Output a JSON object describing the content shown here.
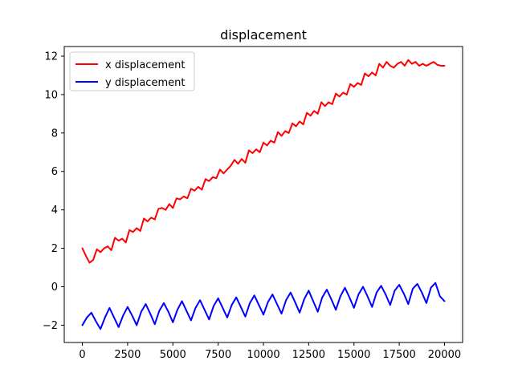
{
  "chart_data": {
    "type": "line",
    "title": "displacement",
    "xlabel": "",
    "ylabel": "",
    "xlim": [
      -1000,
      21000
    ],
    "ylim": [
      -2.9,
      12.5
    ],
    "xticks": [
      0,
      2500,
      5000,
      7500,
      10000,
      12500,
      15000,
      17500,
      20000
    ],
    "xtick_labels": [
      "0",
      "2500",
      "5000",
      "7500",
      "10000",
      "12500",
      "15000",
      "17500",
      "20000"
    ],
    "yticks": [
      -2,
      0,
      2,
      4,
      6,
      8,
      10,
      12
    ],
    "ytick_labels": [
      "−2",
      "0",
      "2",
      "4",
      "6",
      "8",
      "10",
      "12"
    ],
    "grid": false,
    "legend_position": "top-left",
    "series": [
      {
        "name": "x displacement",
        "color": "#ff0000",
        "x": [
          0,
          200,
          400,
          600,
          800,
          1000,
          1200,
          1400,
          1600,
          1800,
          2000,
          2200,
          2400,
          2600,
          2800,
          3000,
          3200,
          3400,
          3600,
          3800,
          4000,
          4200,
          4400,
          4600,
          4800,
          5000,
          5200,
          5400,
          5600,
          5800,
          6000,
          6200,
          6400,
          6600,
          6800,
          7000,
          7200,
          7400,
          7600,
          7800,
          8000,
          8200,
          8400,
          8600,
          8800,
          9000,
          9200,
          9400,
          9600,
          9800,
          10000,
          10200,
          10400,
          10600,
          10800,
          11000,
          11200,
          11400,
          11600,
          11800,
          12000,
          12200,
          12400,
          12600,
          12800,
          13000,
          13200,
          13400,
          13600,
          13800,
          14000,
          14200,
          14400,
          14600,
          14800,
          15000,
          15200,
          15400,
          15600,
          15800,
          16000,
          16200,
          16400,
          16600,
          16800,
          17000,
          17200,
          17400,
          17600,
          17800,
          18000,
          18200,
          18400,
          18600,
          18800,
          19000,
          19200,
          19400,
          19600,
          19800,
          20000
        ],
        "values": [
          2.0,
          1.6,
          1.25,
          1.4,
          1.95,
          1.8,
          2.0,
          2.1,
          1.9,
          2.55,
          2.4,
          2.5,
          2.3,
          2.95,
          2.85,
          3.05,
          2.9,
          3.55,
          3.4,
          3.6,
          3.5,
          4.05,
          4.1,
          4.0,
          4.3,
          4.1,
          4.6,
          4.55,
          4.7,
          4.6,
          5.1,
          5.0,
          5.2,
          5.05,
          5.6,
          5.5,
          5.7,
          5.65,
          6.1,
          5.9,
          6.1,
          6.3,
          6.6,
          6.4,
          6.65,
          6.45,
          7.1,
          6.95,
          7.15,
          7.0,
          7.5,
          7.35,
          7.6,
          7.5,
          8.05,
          7.85,
          8.1,
          8.0,
          8.5,
          8.35,
          8.6,
          8.45,
          9.05,
          8.9,
          9.15,
          9.0,
          9.6,
          9.4,
          9.6,
          9.5,
          10.05,
          9.9,
          10.1,
          10.0,
          10.55,
          10.4,
          10.6,
          10.5,
          11.1,
          10.95,
          11.15,
          11.0,
          11.6,
          11.4,
          11.7,
          11.5,
          11.4,
          11.6,
          11.7,
          11.5,
          11.8,
          11.6,
          11.7,
          11.5,
          11.6,
          11.5,
          11.6,
          11.7,
          11.55,
          11.5,
          11.5
        ]
      },
      {
        "name": "y displacement",
        "color": "#0000ff",
        "x": [
          0,
          250,
          500,
          750,
          1000,
          1250,
          1500,
          1750,
          2000,
          2250,
          2500,
          2750,
          3000,
          3250,
          3500,
          3750,
          4000,
          4250,
          4500,
          4750,
          5000,
          5250,
          5500,
          5750,
          6000,
          6250,
          6500,
          6750,
          7000,
          7250,
          7500,
          7750,
          8000,
          8250,
          8500,
          8750,
          9000,
          9250,
          9500,
          9750,
          10000,
          10250,
          10500,
          10750,
          11000,
          11250,
          11500,
          11750,
          12000,
          12250,
          12500,
          12750,
          13000,
          13250,
          13500,
          13750,
          14000,
          14250,
          14500,
          14750,
          15000,
          15250,
          15500,
          15750,
          16000,
          16250,
          16500,
          16750,
          17000,
          17250,
          17500,
          17750,
          18000,
          18250,
          18500,
          18750,
          19000,
          19250,
          19500,
          19750,
          20000
        ],
        "values": [
          -2.0,
          -1.6,
          -1.35,
          -1.8,
          -2.2,
          -1.6,
          -1.1,
          -1.6,
          -2.1,
          -1.5,
          -1.05,
          -1.5,
          -2.0,
          -1.3,
          -0.9,
          -1.4,
          -1.95,
          -1.25,
          -0.85,
          -1.3,
          -1.85,
          -1.2,
          -0.75,
          -1.25,
          -1.75,
          -1.1,
          -0.7,
          -1.2,
          -1.7,
          -1.0,
          -0.6,
          -1.1,
          -1.6,
          -0.95,
          -0.55,
          -1.05,
          -1.55,
          -0.85,
          -0.45,
          -0.95,
          -1.45,
          -0.8,
          -0.4,
          -0.9,
          -1.4,
          -0.7,
          -0.3,
          -0.8,
          -1.35,
          -0.65,
          -0.2,
          -0.75,
          -1.3,
          -0.55,
          -0.15,
          -0.65,
          -1.2,
          -0.5,
          -0.05,
          -0.55,
          -1.1,
          -0.4,
          0.0,
          -0.5,
          -1.05,
          -0.3,
          0.05,
          -0.4,
          -0.95,
          -0.2,
          0.1,
          -0.35,
          -0.9,
          -0.1,
          0.15,
          -0.3,
          -0.85,
          -0.05,
          0.2,
          -0.5,
          -0.75
        ]
      }
    ]
  }
}
